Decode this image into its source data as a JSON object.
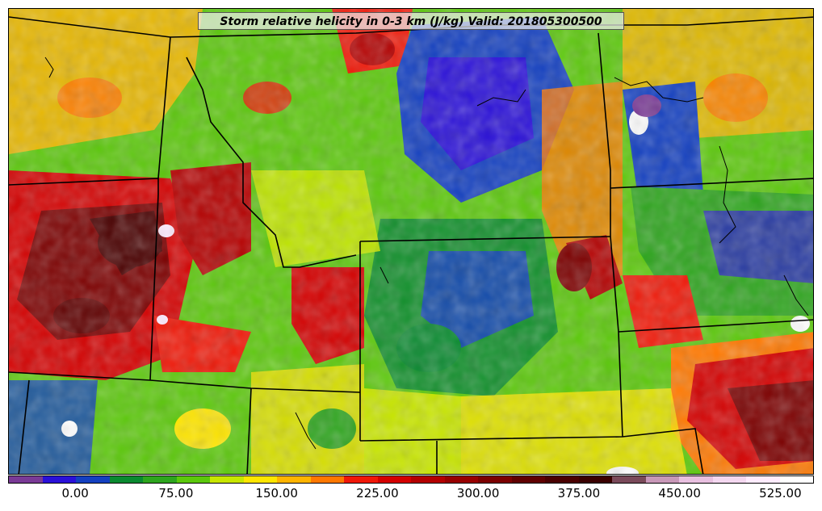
{
  "title": "Storm relative helicity in 0-3 km (J/kg) Valid: 201805300500",
  "colorbar": {
    "colors": [
      "#7a3a96",
      "#2a10d8",
      "#1440c0",
      "#0a8a30",
      "#2ea51e",
      "#5cc80c",
      "#c8e600",
      "#ffe600",
      "#ffb400",
      "#ff7800",
      "#f01808",
      "#d40000",
      "#b40000",
      "#980000",
      "#7c0000",
      "#600000",
      "#4a0000",
      "#3a0000",
      "#7a4a5a",
      "#c898b8",
      "#e8c0e0",
      "#f4d8f0",
      "#ffecff",
      "#ffffff"
    ],
    "ticks": [
      "0.00",
      "75.00",
      "150.00",
      "225.00",
      "300.00",
      "375.00",
      "450.00",
      "525.00"
    ]
  }
}
